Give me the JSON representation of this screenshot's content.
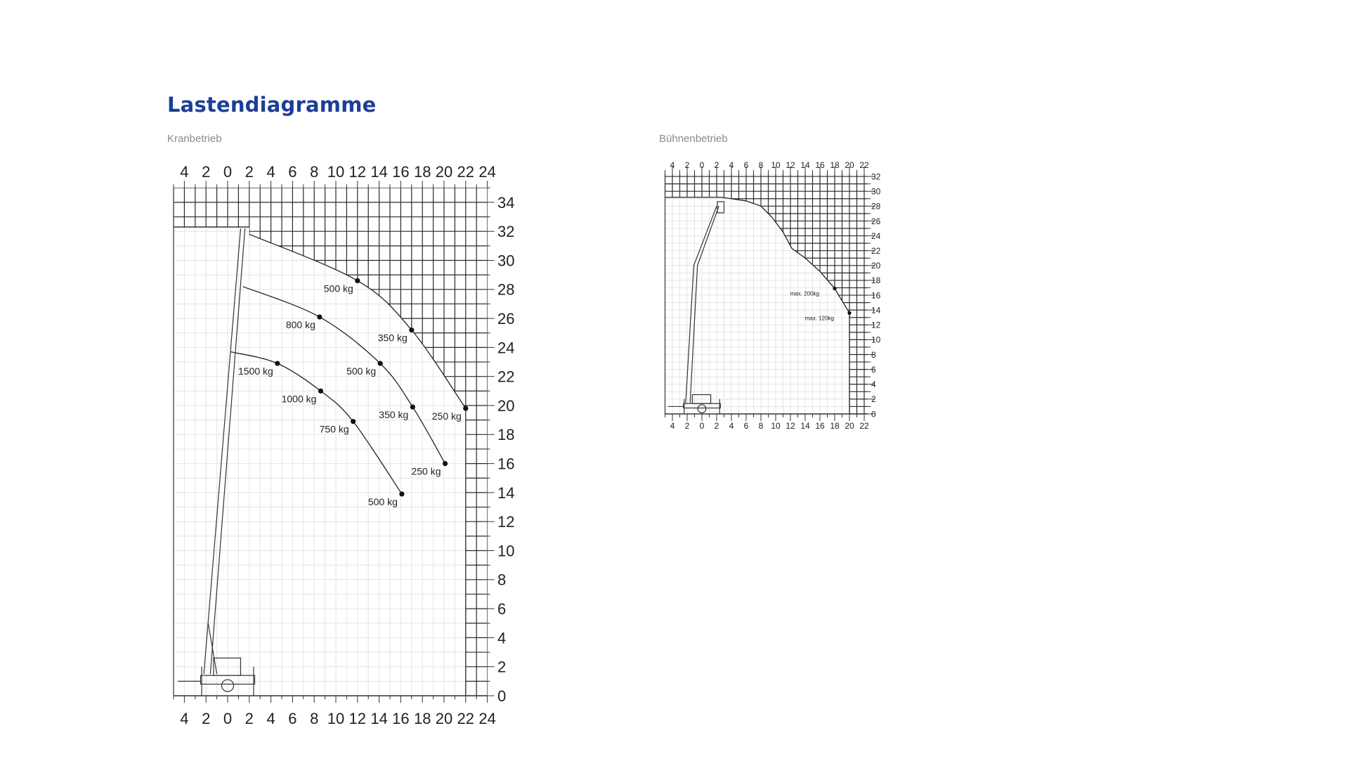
{
  "page": {
    "title": "Lastendiagramme",
    "title_color": "#1c3f96"
  },
  "chart_data": [
    {
      "type": "line",
      "title": "Kranbetrieb",
      "xlim": [
        -5,
        24
      ],
      "ylim": [
        0,
        35
      ],
      "grid": true,
      "x_ticks": [
        -4,
        -2,
        0,
        2,
        4,
        6,
        8,
        10,
        12,
        14,
        16,
        18,
        20,
        22,
        24
      ],
      "x_tick_labels": [
        "4",
        "2",
        "0",
        "2",
        "4",
        "6",
        "8",
        "10",
        "12",
        "14",
        "16",
        "18",
        "20",
        "22",
        "24"
      ],
      "y_ticks": [
        0,
        2,
        4,
        6,
        8,
        10,
        12,
        14,
        16,
        18,
        20,
        22,
        24,
        26,
        28,
        30,
        32,
        34
      ],
      "y_tick_labels": [
        "0",
        "2",
        "4",
        "6",
        "8",
        "10",
        "12",
        "14",
        "16",
        "18",
        "20",
        "22",
        "24",
        "26",
        "28",
        "30",
        "32",
        "34"
      ],
      "series": [
        {
          "points": [
            {
              "x": 2,
              "y": 31.8
            },
            {
              "x": 12,
              "y": 28.6,
              "load": "500 kg"
            },
            {
              "x": 17,
              "y": 25.2,
              "load": "350 kg"
            },
            {
              "x": 22,
              "y": 19.8,
              "load": "250 kg"
            }
          ]
        },
        {
          "points": [
            {
              "x": 1.4,
              "y": 28.2
            },
            {
              "x": 8.5,
              "y": 26.1,
              "load": "800 kg"
            },
            {
              "x": 14.1,
              "y": 22.9,
              "load": "500 kg"
            },
            {
              "x": 17.1,
              "y": 19.9,
              "load": "350 kg"
            },
            {
              "x": 20.1,
              "y": 16.0,
              "load": "250 kg"
            }
          ]
        },
        {
          "points": [
            {
              "x": 0.3,
              "y": 23.7
            },
            {
              "x": 4.6,
              "y": 22.9,
              "load": "1500 kg"
            },
            {
              "x": 8.6,
              "y": 21.0,
              "load": "1000 kg"
            },
            {
              "x": 11.6,
              "y": 18.9,
              "load": "750 kg"
            },
            {
              "x": 16.1,
              "y": 13.9,
              "load": "500 kg"
            }
          ]
        }
      ]
    },
    {
      "type": "line",
      "title": "Bühnenbetrieb",
      "xlim": [
        -5,
        22.5
      ],
      "ylim": [
        0,
        32.4
      ],
      "grid": true,
      "x_ticks": [
        -4,
        -2,
        0,
        2,
        4,
        6,
        8,
        10,
        12,
        14,
        16,
        18,
        20,
        22
      ],
      "x_tick_labels": [
        "4",
        "2",
        "0",
        "2",
        "4",
        "6",
        "8",
        "10",
        "12",
        "14",
        "16",
        "18",
        "20",
        "22"
      ],
      "y_ticks": [
        0,
        2,
        4,
        6,
        8,
        10,
        12,
        14,
        16,
        18,
        20,
        22,
        24,
        26,
        28,
        30,
        32
      ],
      "y_tick_labels": [
        "0",
        "2",
        "4",
        "6",
        "8",
        "10",
        "12",
        "14",
        "16",
        "18",
        "20",
        "22",
        "24",
        "26",
        "28",
        "30",
        "32"
      ],
      "series": [
        {
          "points": [
            {
              "x": 2.5,
              "y": 29.2
            },
            {
              "x": 4,
              "y": 29
            },
            {
              "x": 6,
              "y": 28.7
            },
            {
              "x": 8,
              "y": 28
            },
            {
              "x": 9.5,
              "y": 26.5
            },
            {
              "x": 11,
              "y": 24.5
            },
            {
              "x": 12.2,
              "y": 22.3
            },
            {
              "x": 14,
              "y": 21
            },
            {
              "x": 16,
              "y": 19.2
            },
            {
              "x": 18,
              "y": 16.9,
              "load": "max. 200kg"
            },
            {
              "x": 20,
              "y": 13.6,
              "load": "max. 120kg"
            }
          ]
        }
      ]
    }
  ]
}
